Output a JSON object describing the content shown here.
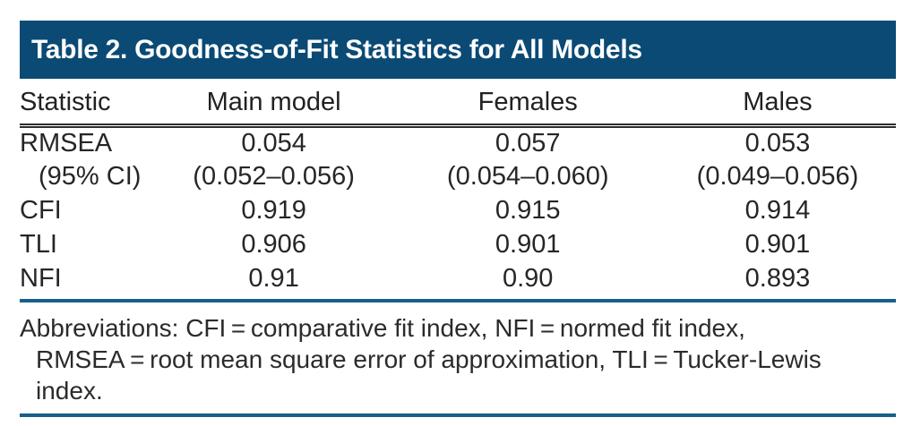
{
  "title_bar": {
    "label": "Table 2. Goodness-of-Fit Statistics for All Models"
  },
  "table": {
    "column_headers": [
      "Statistic",
      "Main model",
      "Females",
      "Males"
    ],
    "rows": [
      {
        "statistic": "RMSEA",
        "main_model": "0.054",
        "females": "0.057",
        "males": "0.053"
      },
      {
        "statistic": "(95% CI)",
        "main_model": "(0.052–0.056)",
        "females": "(0.054–0.060)",
        "males": "(0.049–0.056)"
      },
      {
        "statistic": "CFI",
        "main_model": "0.919",
        "females": "0.915",
        "males": "0.914"
      },
      {
        "statistic": "TLI",
        "main_model": "0.906",
        "females": "0.901",
        "males": "0.901"
      },
      {
        "statistic": "NFI",
        "main_model": "0.91",
        "females": "0.90",
        "males": "0.893"
      }
    ]
  },
  "footnote": {
    "lines": [
      "Abbreviations: CFI = comparative fit index, NFI = normed fit index,",
      "RMSEA = root mean square error of approximation, TLI = Tucker-Lewis",
      "index."
    ]
  },
  "colors": {
    "title_bar_background": "#0a4a75",
    "title_text": "#ffffff",
    "rule_blue": "#166089",
    "header_rule": "#2d2d2d",
    "body_text": "#262626"
  }
}
